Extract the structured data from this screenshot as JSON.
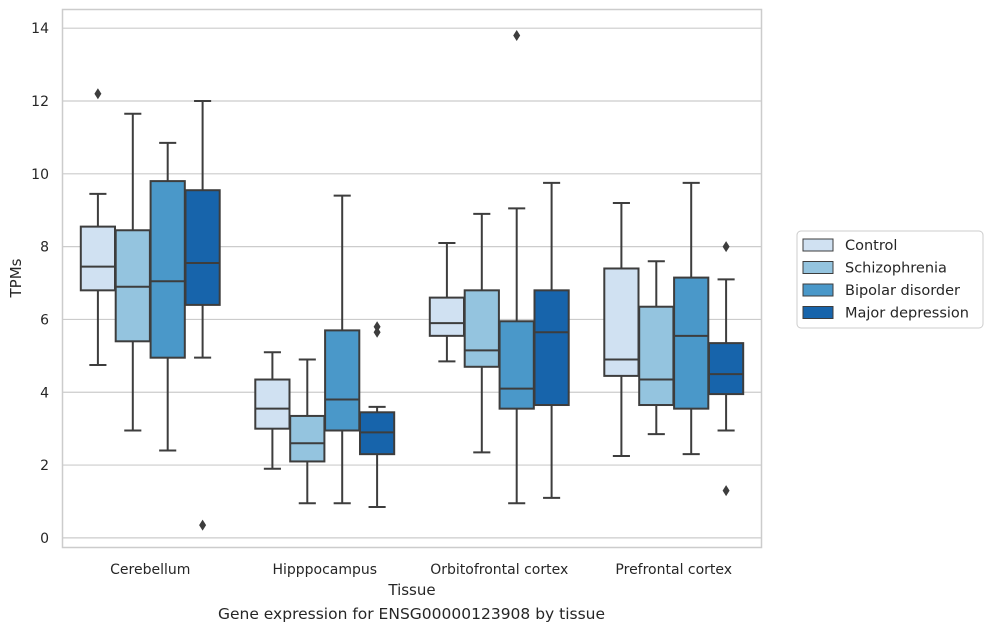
{
  "caption": "Gene expression for ENSG00000123908 by tissue",
  "chart_data": {
    "type": "box",
    "xlabel": "Tissue",
    "ylabel": "TPMs",
    "ylim": [
      -0.25,
      14.5
    ],
    "yticks": [
      0,
      2,
      4,
      6,
      8,
      10,
      12,
      14
    ],
    "grid": "horizontal",
    "legend_position": "right",
    "categories": [
      "Cerebellum",
      "Hipppocampus",
      "Orbitofrontal cortex",
      "Prefrontal cortex"
    ],
    "series": [
      {
        "name": "Control",
        "color": "#d0e1f2",
        "boxes": [
          {
            "whislo": 4.75,
            "q1": 6.8,
            "med": 7.45,
            "q3": 8.55,
            "whishi": 9.45,
            "fliers": [
              12.2
            ]
          },
          {
            "whislo": 1.9,
            "q1": 3.0,
            "med": 3.55,
            "q3": 4.35,
            "whishi": 5.1,
            "fliers": []
          },
          {
            "whislo": 4.85,
            "q1": 5.55,
            "med": 5.9,
            "q3": 6.6,
            "whishi": 8.1,
            "fliers": []
          },
          {
            "whislo": 2.25,
            "q1": 4.45,
            "med": 4.9,
            "q3": 7.4,
            "whishi": 9.2,
            "fliers": []
          }
        ]
      },
      {
        "name": "Schizophrenia",
        "color": "#94c4df",
        "boxes": [
          {
            "whislo": 2.95,
            "q1": 5.4,
            "med": 6.9,
            "q3": 8.45,
            "whishi": 11.65,
            "fliers": []
          },
          {
            "whislo": 0.95,
            "q1": 2.1,
            "med": 2.6,
            "q3": 3.35,
            "whishi": 4.9,
            "fliers": []
          },
          {
            "whislo": 2.35,
            "q1": 4.7,
            "med": 5.15,
            "q3": 6.8,
            "whishi": 8.9,
            "fliers": []
          },
          {
            "whislo": 2.85,
            "q1": 3.65,
            "med": 4.35,
            "q3": 6.35,
            "whishi": 7.6,
            "fliers": []
          }
        ]
      },
      {
        "name": "Bipolar disorder",
        "color": "#4a98c9",
        "boxes": [
          {
            "whislo": 2.4,
            "q1": 4.95,
            "med": 7.05,
            "q3": 9.8,
            "whishi": 10.85,
            "fliers": []
          },
          {
            "whislo": 0.95,
            "q1": 2.95,
            "med": 3.8,
            "q3": 5.7,
            "whishi": 9.4,
            "fliers": []
          },
          {
            "whislo": 0.95,
            "q1": 3.55,
            "med": 4.1,
            "q3": 5.95,
            "whishi": 9.05,
            "fliers": [
              13.8
            ]
          },
          {
            "whislo": 2.3,
            "q1": 3.55,
            "med": 5.55,
            "q3": 7.15,
            "whishi": 9.75,
            "fliers": []
          }
        ]
      },
      {
        "name": "Major depression",
        "color": "#1764ab",
        "boxes": [
          {
            "whislo": 4.95,
            "q1": 6.4,
            "med": 7.55,
            "q3": 9.55,
            "whishi": 12.0,
            "fliers": [
              0.35
            ]
          },
          {
            "whislo": 0.85,
            "q1": 2.3,
            "med": 2.9,
            "q3": 3.45,
            "whishi": 3.6,
            "fliers": [
              5.65,
              5.8
            ]
          },
          {
            "whislo": 1.1,
            "q1": 3.65,
            "med": 5.65,
            "q3": 6.8,
            "whishi": 9.75,
            "fliers": []
          },
          {
            "whislo": 2.95,
            "q1": 3.95,
            "med": 4.5,
            "q3": 5.35,
            "whishi": 7.1,
            "fliers": [
              8.0,
              1.3
            ]
          }
        ]
      }
    ]
  }
}
